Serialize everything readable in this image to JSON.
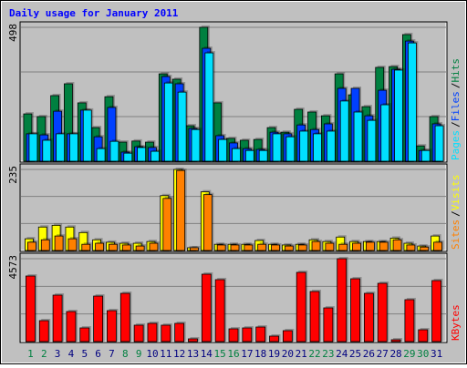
{
  "chart_data": [
    {
      "type": "bar",
      "title": "Daily usage for January 2011",
      "categories": [
        "1",
        "2",
        "3",
        "4",
        "5",
        "6",
        "7",
        "8",
        "9",
        "10",
        "11",
        "12",
        "13",
        "14",
        "15",
        "16",
        "17",
        "18",
        "19",
        "20",
        "21",
        "22",
        "23",
        "24",
        "25",
        "26",
        "27",
        "28",
        "29",
        "30",
        "31"
      ],
      "category_label_colors": [
        "#008040",
        "#008040",
        "#000080",
        "#000080",
        "#000080",
        "#000080",
        "#000080",
        "#008040",
        "#008040",
        "#000080",
        "#000080",
        "#000080",
        "#000080",
        "#000080",
        "#008040",
        "#008040",
        "#000080",
        "#000080",
        "#000080",
        "#000080",
        "#000080",
        "#008040",
        "#008040",
        "#000080",
        "#000080",
        "#000080",
        "#000080",
        "#000080",
        "#008040",
        "#008040",
        "#000080"
      ],
      "legend_separator": "/",
      "ylim": [
        0,
        498
      ],
      "yticks": [
        498
      ],
      "series": [
        {
          "name": "Hits",
          "color": "#008040",
          "values": [
            176,
            166,
            244,
            288,
            217,
            125,
            240,
            71,
            75,
            71,
            325,
            305,
            132,
            498,
            217,
            85,
            78,
            81,
            125,
            108,
            193,
            183,
            169,
            325,
            247,
            203,
            349,
            352,
            471,
            57,
            166
          ]
        },
        {
          "name": "Files",
          "color": "#0040ff",
          "values": [
            102,
            98,
            186,
            102,
            190,
            91,
            200,
            34,
            54,
            51,
            315,
            288,
            122,
            420,
            95,
            68,
            47,
            44,
            108,
            102,
            135,
            118,
            139,
            271,
            271,
            169,
            264,
            342,
            447,
            40,
            139
          ]
        },
        {
          "name": "Pages",
          "color": "#00e0ff",
          "values": [
            102,
            78,
            102,
            102,
            190,
            47,
            74,
            30,
            51,
            37,
            291,
            257,
            118,
            403,
            81,
            47,
            40,
            40,
            102,
            91,
            112,
            102,
            112,
            224,
            183,
            152,
            210,
            339,
            440,
            40,
            132
          ]
        }
      ]
    },
    {
      "type": "bar",
      "ylim": [
        0,
        235
      ],
      "yticks": [
        235
      ],
      "series": [
        {
          "name": "Visits",
          "color": "#ffff00",
          "values": [
            34,
            68,
            73,
            68,
            52,
            31,
            24,
            21,
            21,
            26,
            159,
            235,
            8,
            170,
            18,
            18,
            18,
            29,
            18,
            16,
            18,
            31,
            26,
            39,
            26,
            26,
            26,
            36,
            21,
            13,
            42
          ]
        },
        {
          "name": "Sites",
          "color": "#ff8000",
          "values": [
            24,
            31,
            42,
            34,
            18,
            21,
            18,
            16,
            13,
            21,
            151,
            232,
            8,
            162,
            16,
            16,
            16,
            18,
            16,
            13,
            16,
            26,
            21,
            18,
            21,
            24,
            24,
            31,
            16,
            10,
            24
          ]
        }
      ]
    },
    {
      "type": "bar",
      "ylim": [
        0,
        4573
      ],
      "yticks": [
        4573
      ],
      "series": [
        {
          "name": "KBytes",
          "color": "#ff0000",
          "values": [
            3618,
            1156,
            2563,
            1658,
            754,
            2512,
            1708,
            2663,
            905,
            1005,
            905,
            1005,
            151,
            3719,
            3417,
            704,
            754,
            804,
            302,
            603,
            3819,
            2764,
            1859,
            4573,
            3467,
            2663,
            3216,
            101,
            2312,
            653,
            3367
          ]
        }
      ]
    }
  ]
}
